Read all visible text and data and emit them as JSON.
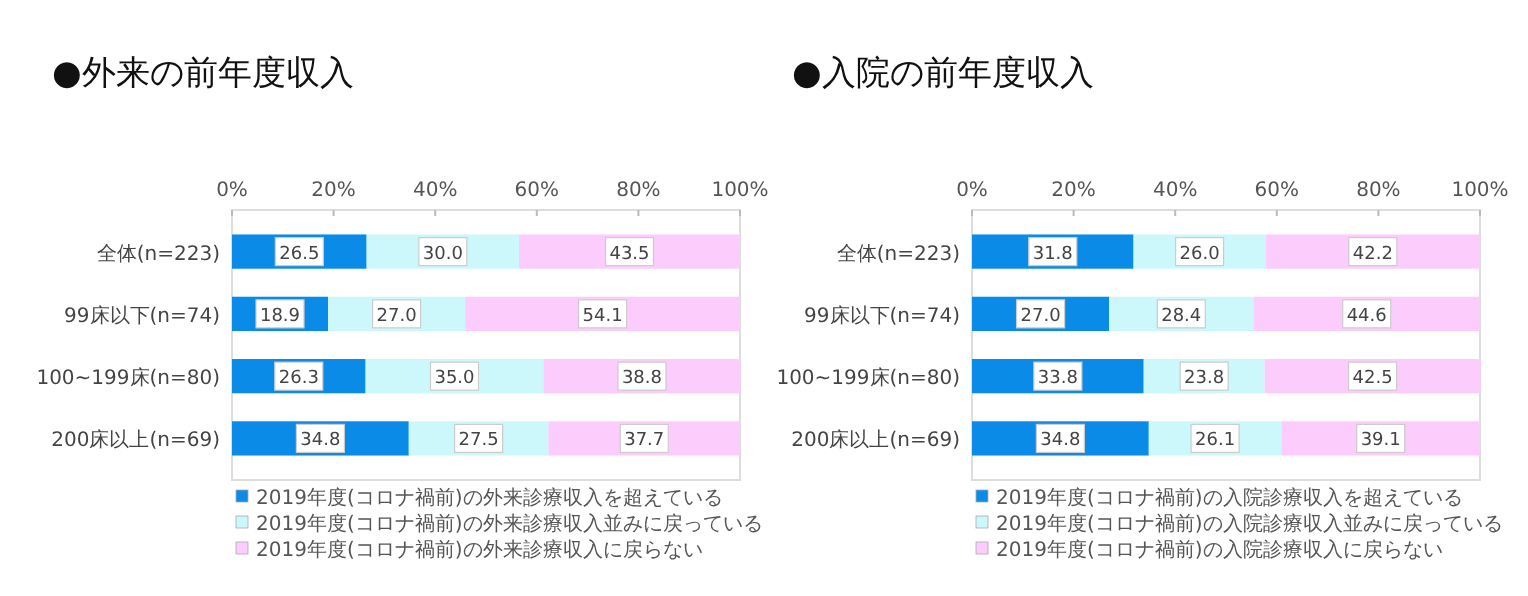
{
  "chart_data": [
    {
      "type": "bar",
      "title": "●外来の前年度収入",
      "orientation": "horizontal",
      "stacked": true,
      "categories": [
        "全体(n=223)",
        "99床以下(n=74)",
        "100~199床(n=80)",
        "200床以上(n=69)"
      ],
      "series": [
        {
          "name": "2019年度(コロナ禍前)の外来診療収入を超えている",
          "color": "#0a8be8",
          "values": [
            26.5,
            18.9,
            26.3,
            34.8
          ],
          "value_labels": [
            "26.5",
            "18.9",
            "26.3",
            "34.8"
          ]
        },
        {
          "name": "2019年度(コロナ禍前)の外来診療収入並みに戻っている",
          "color": "#ccf8fc",
          "values": [
            30.0,
            27.0,
            35.0,
            27.5
          ],
          "value_labels": [
            "30.0",
            "27.0",
            "35.0",
            "27.5"
          ]
        },
        {
          "name": "2019年度(コロナ禍前)の外来診療収入に戻らない",
          "color": "#fcccfc",
          "values": [
            43.5,
            54.1,
            38.8,
            37.7
          ],
          "value_labels": [
            "43.5",
            "54.1",
            "38.8",
            "37.7"
          ]
        }
      ],
      "xlim": [
        0,
        100
      ],
      "xticks": [
        {
          "value": 0,
          "label": "0%"
        },
        {
          "value": 20,
          "label": "20%"
        },
        {
          "value": 40,
          "label": "40%"
        },
        {
          "value": 60,
          "label": "60%"
        },
        {
          "value": 80,
          "label": "80%"
        },
        {
          "value": 100,
          "label": "100%"
        }
      ],
      "legend": "bottom",
      "grid": false
    },
    {
      "type": "bar",
      "title": "●入院の前年度収入",
      "orientation": "horizontal",
      "stacked": true,
      "categories": [
        "全体(n=223)",
        "99床以下(n=74)",
        "100~199床(n=80)",
        "200床以上(n=69)"
      ],
      "series": [
        {
          "name": "2019年度(コロナ禍前)の入院診療収入を超えている",
          "color": "#0a8be8",
          "values": [
            31.8,
            27.0,
            33.8,
            34.8
          ],
          "value_labels": [
            "31.8",
            "27.0",
            "33.8",
            "34.8"
          ]
        },
        {
          "name": "2019年度(コロナ禍前)の入院診療収入並みに戻っている",
          "color": "#ccf8fc",
          "values": [
            26.0,
            28.4,
            23.8,
            26.1
          ],
          "value_labels": [
            "26.0",
            "28.4",
            "23.8",
            "26.1"
          ]
        },
        {
          "name": "2019年度(コロナ禍前)の入院診療収入に戻らない",
          "color": "#fcccfc",
          "values": [
            42.2,
            44.6,
            42.5,
            39.1
          ],
          "value_labels": [
            "42.2",
            "44.6",
            "42.5",
            "39.1"
          ]
        }
      ],
      "xlim": [
        0,
        100
      ],
      "xticks": [
        {
          "value": 0,
          "label": "0%"
        },
        {
          "value": 20,
          "label": "20%"
        },
        {
          "value": 40,
          "label": "40%"
        },
        {
          "value": 60,
          "label": "60%"
        },
        {
          "value": 80,
          "label": "80%"
        },
        {
          "value": 100,
          "label": "100%"
        }
      ],
      "legend": "bottom",
      "grid": false
    }
  ]
}
